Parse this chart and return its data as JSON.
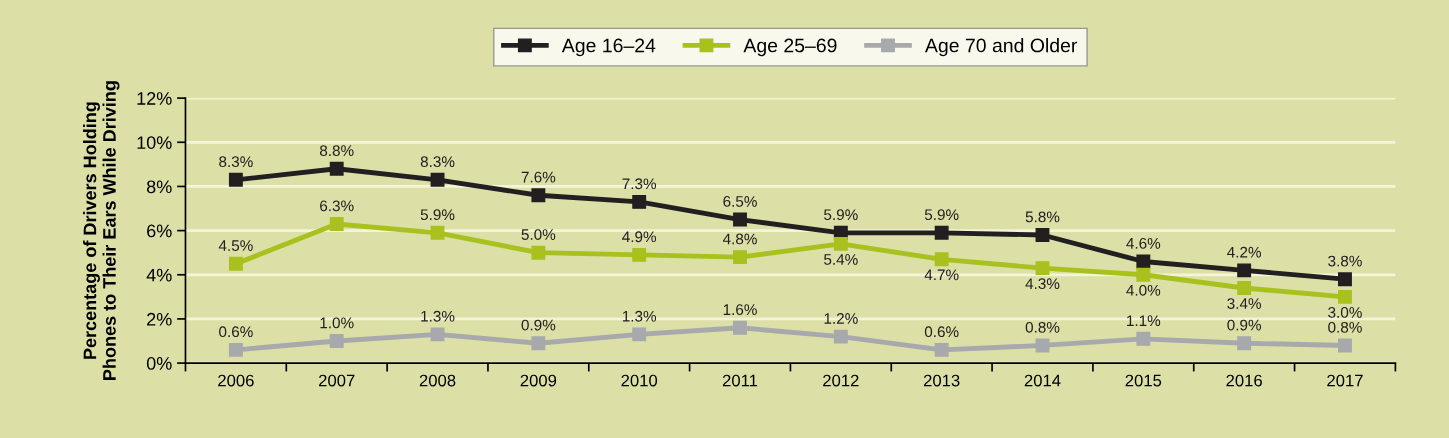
{
  "chart_data": {
    "type": "line",
    "ylabel": "Percentage of Drivers Holding\nPhones to Their Ears While Driving",
    "categories": [
      "2006",
      "2007",
      "2008",
      "2009",
      "2010",
      "2011",
      "2012",
      "2013",
      "2014",
      "2015",
      "2016",
      "2017"
    ],
    "series": [
      {
        "name": "Age 16–24",
        "color": "#231f20",
        "values": [
          8.3,
          8.8,
          8.3,
          7.6,
          7.3,
          6.5,
          5.9,
          5.9,
          5.8,
          4.6,
          4.2,
          3.8
        ],
        "value_labels": [
          "8.3%",
          "8.8%",
          "8.3%",
          "7.6%",
          "7.3%",
          "6.5%",
          "5.9%",
          "5.9%",
          "5.8%",
          "4.6%",
          "4.2%",
          "3.8%"
        ]
      },
      {
        "name": "Age 25–69",
        "color": "#a9c11f",
        "values": [
          4.5,
          6.3,
          5.9,
          5.0,
          4.9,
          4.8,
          5.4,
          4.7,
          4.3,
          4.0,
          3.4,
          3.0
        ],
        "value_labels": [
          "4.5%",
          "6.3%",
          "5.9%",
          "5.0%",
          "4.9%",
          "4.8%",
          "5.4%",
          "4.7%",
          "4.3%",
          "4.0%",
          "3.4%",
          "3.0%"
        ]
      },
      {
        "name": "Age 70 and Older",
        "color": "#a7a9ac",
        "values": [
          0.6,
          1.0,
          1.3,
          0.9,
          1.3,
          1.6,
          1.2,
          0.6,
          0.8,
          1.1,
          0.9,
          0.8
        ],
        "value_labels": [
          "0.6%",
          "1.0%",
          "1.3%",
          "0.9%",
          "1.3%",
          "1.6%",
          "1.2%",
          "0.6%",
          "0.8%",
          "1.1%",
          "0.9%",
          "0.8%"
        ]
      }
    ],
    "ylim": [
      0,
      12
    ],
    "yticks": [
      {
        "value": 0,
        "label": "0%"
      },
      {
        "value": 2,
        "label": "2%"
      },
      {
        "value": 4,
        "label": "4%"
      },
      {
        "value": 6,
        "label": "6%"
      },
      {
        "value": 8,
        "label": "8%"
      },
      {
        "value": 10,
        "label": "10%"
      },
      {
        "value": 12,
        "label": "12%"
      }
    ],
    "grid": "y",
    "legend": "top",
    "marker": "square",
    "line_style": "solid"
  }
}
